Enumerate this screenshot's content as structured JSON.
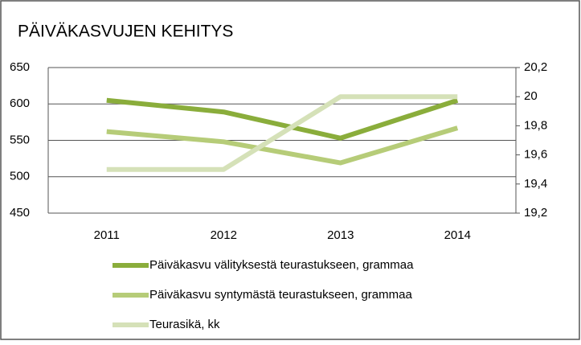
{
  "chart_data": {
    "type": "line",
    "title": "PÄIVÄKASVUJEN KEHITYS",
    "categories": [
      "2011",
      "2012",
      "2013",
      "2014"
    ],
    "series": [
      {
        "name": "Päiväkasvu välityksestä teurastukseen, grammaa",
        "color": "#8aad3b",
        "values": [
          605,
          589,
          553,
          605
        ]
      },
      {
        "name": "Päiväkasvu syntymästä teurastukseen, grammaa",
        "color": "#b6cc78",
        "values": [
          562,
          548,
          519,
          567
        ]
      },
      {
        "name": "Teurasikä, kk",
        "color": "#d5e1b8",
        "axis": "y2",
        "values": [
          19.5,
          19.5,
          20,
          20
        ]
      }
    ],
    "ylim": [
      450,
      650
    ],
    "yticks": [
      450,
      500,
      550,
      600,
      650
    ],
    "y2lim": [
      19.2,
      20.2
    ],
    "y2ticks": [
      {
        "value": 19.2,
        "label": "19,2"
      },
      {
        "value": 19.4,
        "label": "19,4"
      },
      {
        "value": 19.6,
        "label": "19,6"
      },
      {
        "value": 19.8,
        "label": "19,8"
      },
      20,
      {
        "value": 20.2,
        "label": "20,2"
      }
    ],
    "grid": true
  }
}
